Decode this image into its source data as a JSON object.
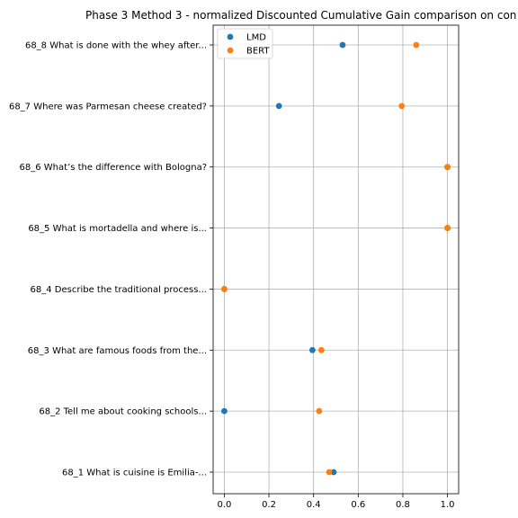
{
  "chart_data": {
    "type": "scatter",
    "title": "Phase 3 Method 3 - normalized Discounted Cumulative Gain comparison on con",
    "xlabel": "",
    "ylabel": "",
    "xlim": [
      -0.05,
      1.05
    ],
    "x_ticks": [
      "0.0",
      "0.2",
      "0.4",
      "0.6",
      "0.8",
      "1.0"
    ],
    "x_tick_values": [
      0,
      0.2,
      0.4,
      0.6,
      0.8,
      1.0
    ],
    "categories": [
      "68_1 What is cuisine is Emilia-...",
      "68_2 Tell me about cooking schools...",
      "68_3 What are famous foods from the...",
      "68_4 Describe the traditional process...",
      "68_5 What is mortadella and where is...",
      "68_6 What’s the difference with Bologna?",
      "68_7 Where was Parmesan cheese created?",
      "68_8 What is done with the whey after..."
    ],
    "series": [
      {
        "name": "LMD",
        "color": "#1f77b4",
        "values": [
          0.49,
          0.0,
          0.395,
          0.0,
          1.0,
          1.0,
          0.245,
          0.53
        ]
      },
      {
        "name": "BERT",
        "color": "#ff7f0e",
        "values": [
          0.47,
          0.425,
          0.435,
          0.0,
          1.0,
          1.0,
          0.795,
          0.86
        ]
      }
    ],
    "grid": true,
    "legend_position": "top-left"
  }
}
